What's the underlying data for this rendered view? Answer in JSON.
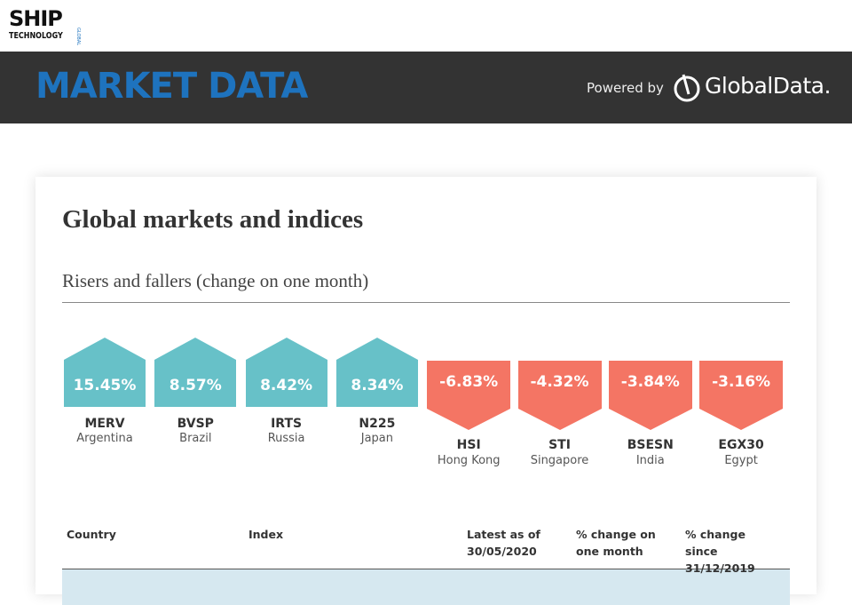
{
  "header": {
    "logo": {
      "line1": "SHIP",
      "line2": "TECHNOLOGY",
      "tag": "GLOBAL"
    },
    "title": "MARKET DATA",
    "powered_by": "Powered by",
    "brand": "GlobalData."
  },
  "card": {
    "title": "Global markets and indices",
    "subtitle": "Risers and fallers (change on one month)",
    "risers": [
      {
        "change": "15.45%",
        "index": "MERV",
        "country": "Argentina"
      },
      {
        "change": "8.57%",
        "index": "BVSP",
        "country": "Brazil"
      },
      {
        "change": "8.42%",
        "index": "IRTS",
        "country": "Russia"
      },
      {
        "change": "8.34%",
        "index": "N225",
        "country": "Japan"
      }
    ],
    "fallers": [
      {
        "change": "-6.83%",
        "index": "HSI",
        "country": "Hong Kong"
      },
      {
        "change": "-4.32%",
        "index": "STI",
        "country": "Singapore"
      },
      {
        "change": "-3.84%",
        "index": "BSESN",
        "country": "India"
      },
      {
        "change": "-3.16%",
        "index": "EGX30",
        "country": "Egypt"
      }
    ],
    "table": {
      "columns": [
        "Country",
        "Index",
        "Latest as of 30/05/2020",
        "% change on one month",
        "% change since 31/12/2019"
      ]
    }
  }
}
